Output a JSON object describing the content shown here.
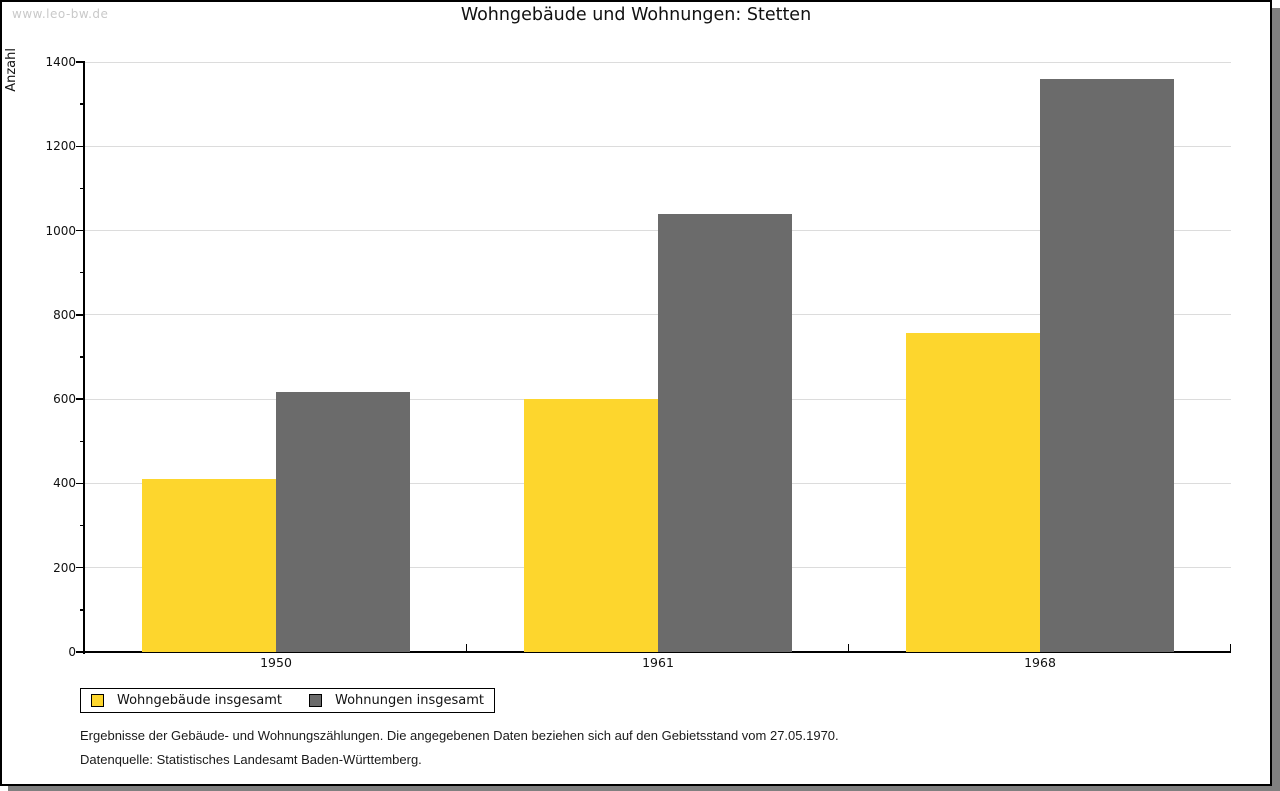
{
  "watermark": "www.leo-bw.de",
  "chart_data": {
    "type": "bar",
    "title": "Wohngebäude und Wohnungen: Stetten",
    "ylabel": "Anzahl",
    "xlabel": "",
    "categories": [
      "1950",
      "1961",
      "1968"
    ],
    "series": [
      {
        "name": "Wohngebäude insgesamt",
        "color": "#fdd62d",
        "values": [
          410,
          600,
          757
        ]
      },
      {
        "name": "Wohnungen insgesamt",
        "color": "#6b6b6b",
        "values": [
          617,
          1040,
          1360
        ]
      }
    ],
    "ylim": [
      0,
      1400
    ],
    "ytick_step": 200,
    "ytick_minor_step": 100,
    "ytick_labels": [
      "0",
      "200",
      "400",
      "600",
      "800",
      "1000",
      "1200",
      "1400"
    ],
    "grid": true,
    "legend_position": "bottom-left"
  },
  "footer": {
    "line1": "Ergebnisse der Gebäude- und Wohnungszählungen. Die angegebenen Daten beziehen sich auf den Gebietsstand vom 27.05.1970.",
    "line2": "Datenquelle: Statistisches Landesamt Baden-Württemberg."
  },
  "colors": {
    "series_yellow": "#fdd62d",
    "series_gray": "#6b6b6b",
    "gridline": "#dcdcdc",
    "frame_border": "#000000",
    "shadow": "#808080",
    "watermark": "#c9c9c9",
    "background": "#ffffff"
  }
}
